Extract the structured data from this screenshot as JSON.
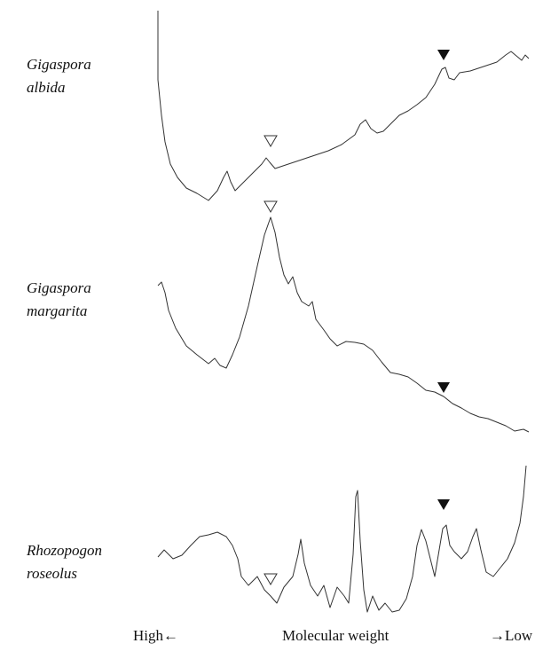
{
  "traces": [
    {
      "label_lines": [
        "Gigaspora",
        "albida"
      ]
    },
    {
      "label_lines": [
        "Gigaspora",
        "margarita"
      ]
    },
    {
      "label_lines": [
        "Rhozopogon",
        "roseolus"
      ]
    }
  ],
  "axis": {
    "left": "High←",
    "center": "Molecular weight",
    "right": "→Low"
  }
}
